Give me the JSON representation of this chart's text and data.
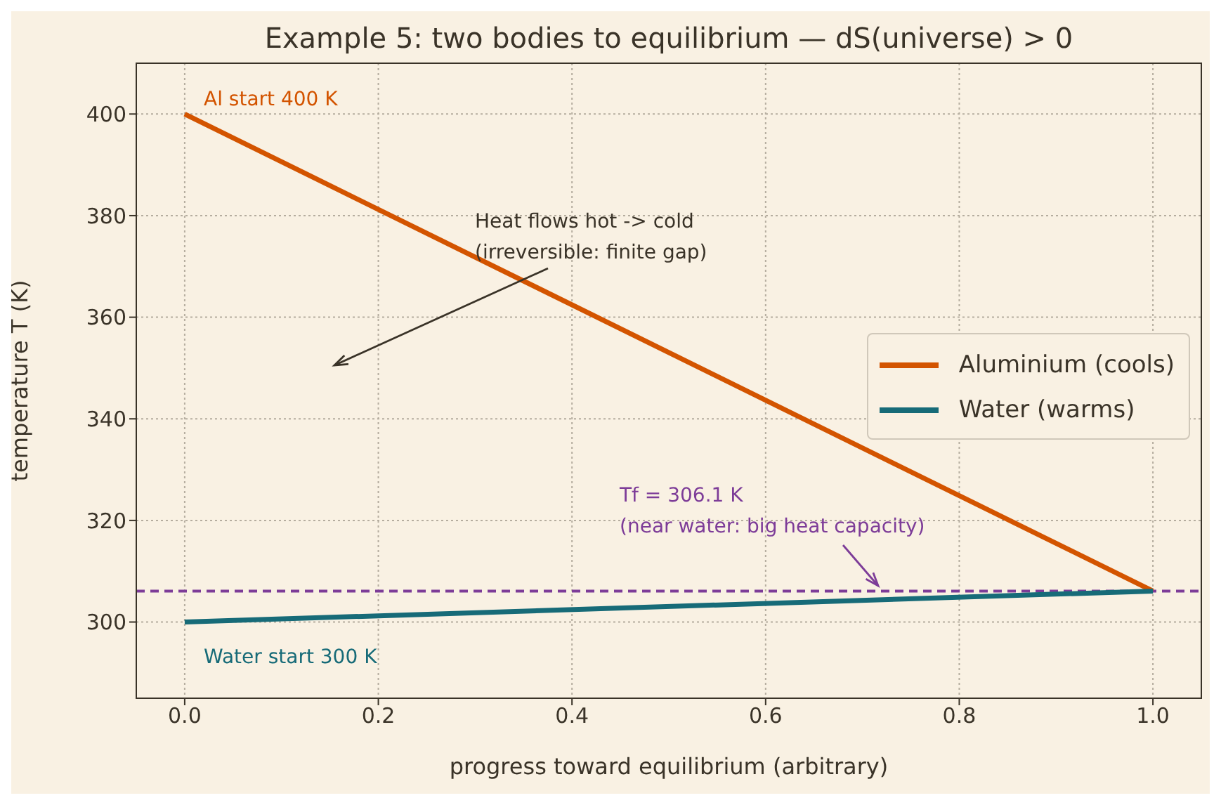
{
  "chart_data": {
    "type": "line",
    "title": "Example 5: two bodies to equilibrium — dS(universe) > 0",
    "xlabel": "progress toward equilibrium (arbitrary)",
    "ylabel": "temperature  T (K)",
    "x": [
      0,
      1
    ],
    "series": [
      {
        "name": "Aluminium (cools)",
        "color": "#d35400",
        "values": [
          400,
          306.1
        ]
      },
      {
        "name": "Water (warms)",
        "color": "#176b78",
        "values": [
          300,
          306.1
        ]
      }
    ],
    "xlim": [
      -0.05,
      1.05
    ],
    "xticks": [
      {
        "value": 0,
        "label": "0.0"
      },
      {
        "value": 0.2,
        "label": "0.2"
      },
      {
        "value": 0.4,
        "label": "0.4"
      },
      {
        "value": 0.6,
        "label": "0.6"
      },
      {
        "value": 0.8,
        "label": "0.8"
      },
      {
        "value": 1,
        "label": "1.0"
      }
    ],
    "ylim": [
      285,
      410
    ],
    "yticks": [
      300,
      320,
      340,
      360,
      380,
      400
    ],
    "ref_lines": [
      {
        "axis": "y",
        "value": 306.1,
        "color": "#7d3c98",
        "line_style": "dashed"
      }
    ],
    "annotations": [
      "Al start 400 K",
      "Water start 300 K",
      "Heat flows hot -> cold\n(irreversible: finite gap)",
      "Tf = 306.1 K\n(near water: big heat capacity)"
    ],
    "grid": true,
    "legend": "right",
    "marker": "none",
    "line_style": "solid"
  }
}
